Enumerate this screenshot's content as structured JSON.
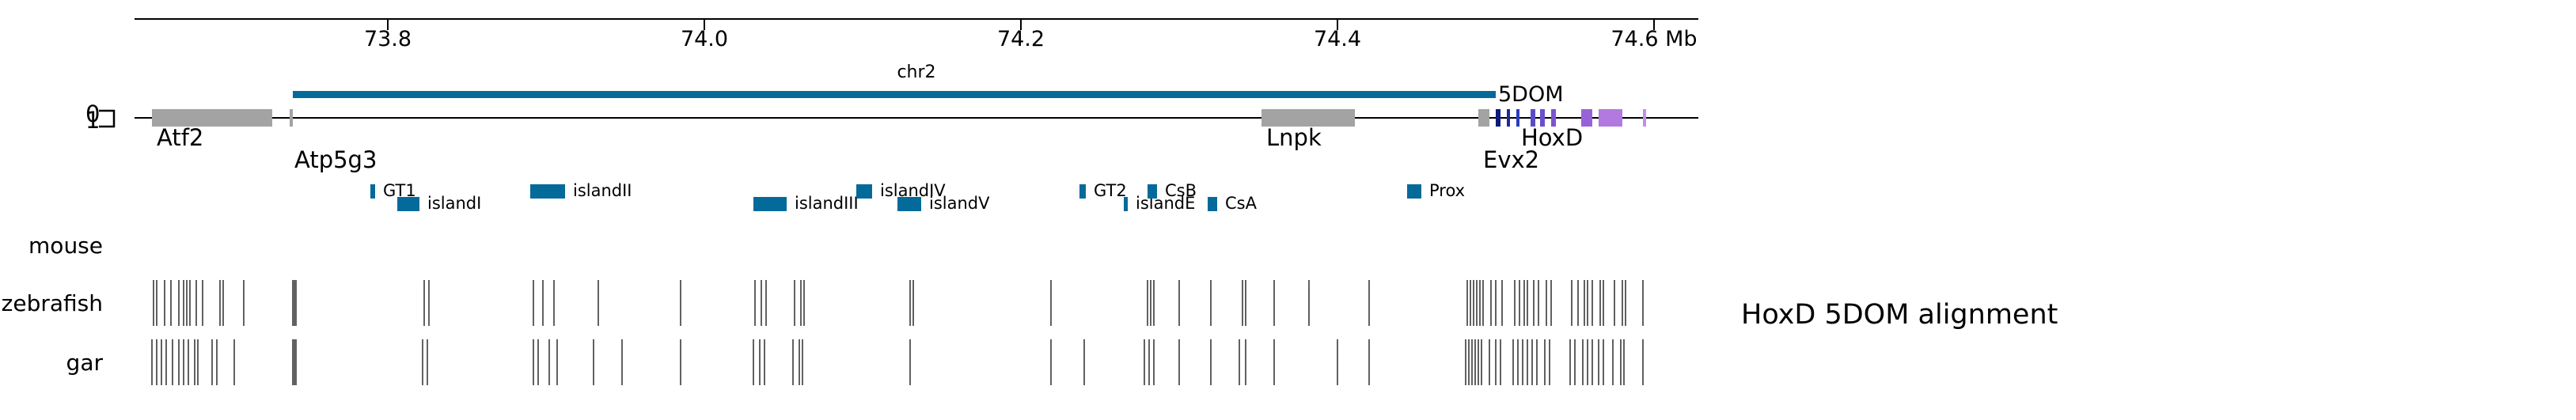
{
  "axis": {
    "unit": "Mb",
    "ticks": [
      73.8,
      74.0,
      74.2,
      74.4,
      74.6
    ],
    "tick_labels": [
      "73.8",
      "74.0",
      "74.2",
      "74.4",
      "74.6 Mb"
    ]
  },
  "region": {
    "chrom_label": "chr2",
    "domain_label": "5DOM",
    "domain_start": 73.74,
    "domain_end": 74.5,
    "domain_color": "#046a9a"
  },
  "strand_glyph": {
    "top": "0",
    "bottom": "1"
  },
  "genes": [
    {
      "label": "Atf2",
      "start": 73.651,
      "end": 73.727,
      "color": "#a3a3a3",
      "label_row": 1
    },
    {
      "label": "Atp5g3",
      "start": 73.738,
      "end": 73.74,
      "color": "#a3a3a3",
      "label_row": 2
    },
    {
      "label": "Lnpk",
      "start": 74.352,
      "end": 74.411,
      "color": "#a3a3a3",
      "label_row": 1
    },
    {
      "label": "Evx2",
      "start": 74.489,
      "end": 74.496,
      "color": "#a3a3a3",
      "label_row": 2
    },
    {
      "label": "",
      "start": 74.5,
      "end": 74.503,
      "color": "#0d1a7a",
      "label_row": 0
    },
    {
      "label": "",
      "start": 74.507,
      "end": 74.509,
      "color": "#1b2a9a",
      "label_row": 0
    },
    {
      "label": "HoxD",
      "start": 74.513,
      "end": 74.515,
      "color": "#2a3cc0",
      "label_row": 1
    },
    {
      "label": "",
      "start": 74.522,
      "end": 74.525,
      "color": "#5a4cc8",
      "label_row": 0
    },
    {
      "label": "",
      "start": 74.528,
      "end": 74.531,
      "color": "#6a50cc",
      "label_row": 0
    },
    {
      "label": "",
      "start": 74.535,
      "end": 74.538,
      "color": "#7c55d0",
      "label_row": 0
    },
    {
      "label": "",
      "start": 74.554,
      "end": 74.561,
      "color": "#9a62d8",
      "label_row": 0
    },
    {
      "label": "",
      "start": 74.565,
      "end": 74.58,
      "color": "#b27ae0",
      "label_row": 0
    },
    {
      "label": "",
      "start": 74.593,
      "end": 74.595,
      "color": "#c48ee8",
      "label_row": 0
    }
  ],
  "elements": [
    {
      "label": "GT1",
      "start": 73.789,
      "end": 73.792,
      "row": 0
    },
    {
      "label": "islandI",
      "start": 73.806,
      "end": 73.82,
      "row": 1
    },
    {
      "label": "islandII",
      "start": 73.89,
      "end": 73.912,
      "row": 0
    },
    {
      "label": "islandIII",
      "start": 74.031,
      "end": 74.052,
      "row": 1
    },
    {
      "label": "islandIV",
      "start": 74.096,
      "end": 74.106,
      "row": 0
    },
    {
      "label": "islandV",
      "start": 74.122,
      "end": 74.137,
      "row": 1
    },
    {
      "label": "GT2",
      "start": 74.237,
      "end": 74.241,
      "row": 0
    },
    {
      "label": "islandE",
      "start": 74.265,
      "end": 74.267,
      "row": 1
    },
    {
      "label": "CsB",
      "start": 74.28,
      "end": 74.286,
      "row": 0
    },
    {
      "label": "CsA",
      "start": 74.318,
      "end": 74.324,
      "row": 1
    },
    {
      "label": "Prox",
      "start": 74.444,
      "end": 74.453,
      "row": 0
    }
  ],
  "element_color": "#046a9a",
  "tracks": [
    {
      "label": "mouse",
      "positions": []
    },
    {
      "label": "zebrafish",
      "positions": [
        73.652,
        73.654,
        73.659,
        73.663,
        73.668,
        73.671,
        73.673,
        73.675,
        73.679,
        73.683,
        73.694,
        73.696,
        73.709,
        73.74,
        73.741,
        73.742,
        73.823,
        73.826,
        73.892,
        73.898,
        73.905,
        73.933,
        73.985,
        74.032,
        74.036,
        74.039,
        74.057,
        74.061,
        74.063,
        74.13,
        74.132,
        74.219,
        74.28,
        74.282,
        74.284,
        74.3,
        74.32,
        74.34,
        74.342,
        74.36,
        74.382,
        74.42,
        74.482,
        74.484,
        74.486,
        74.488,
        74.49,
        74.492,
        74.497,
        74.5,
        74.504,
        74.512,
        74.515,
        74.518,
        74.52,
        74.524,
        74.527,
        74.532,
        74.535,
        74.548,
        74.552,
        74.556,
        74.558,
        74.561,
        74.566,
        74.568,
        74.575,
        74.58,
        74.582,
        74.593
      ]
    },
    {
      "label": "gar",
      "positions": [
        73.651,
        73.654,
        73.657,
        73.66,
        73.664,
        73.668,
        73.671,
        73.674,
        73.678,
        73.68,
        73.689,
        73.692,
        73.703,
        73.74,
        73.741,
        73.742,
        73.822,
        73.825,
        73.892,
        73.895,
        73.902,
        73.907,
        73.93,
        73.948,
        73.985,
        74.031,
        74.035,
        74.038,
        74.056,
        74.06,
        74.062,
        74.13,
        74.219,
        74.24,
        74.278,
        74.281,
        74.284,
        74.3,
        74.32,
        74.338,
        74.342,
        74.36,
        74.4,
        74.42,
        74.481,
        74.483,
        74.485,
        74.487,
        74.489,
        74.491,
        74.496,
        74.5,
        74.503,
        74.511,
        74.514,
        74.517,
        74.52,
        74.523,
        74.526,
        74.531,
        74.534,
        74.547,
        74.55,
        74.555,
        74.558,
        74.561,
        74.565,
        74.568,
        74.574,
        74.579,
        74.581,
        74.593
      ]
    }
  ],
  "alignment_label": "HoxD 5DOM alignment"
}
